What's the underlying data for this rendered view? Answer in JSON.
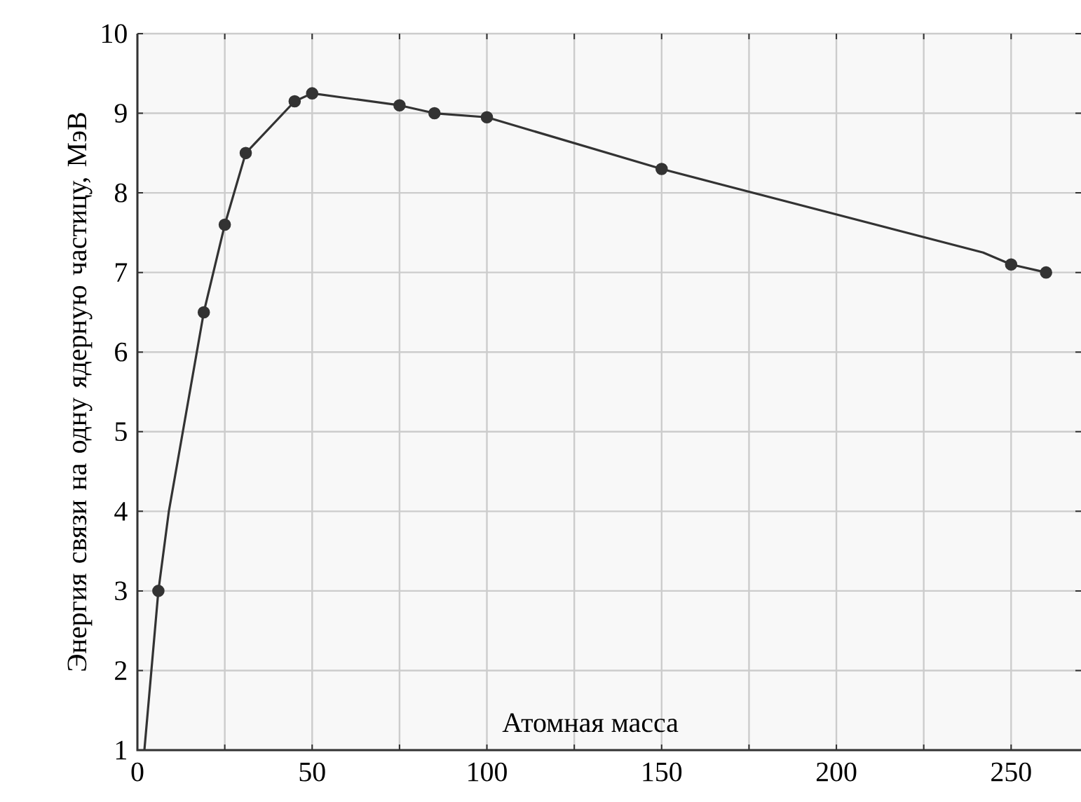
{
  "chart_data": {
    "type": "line",
    "xlabel": "Атомная масса",
    "ylabel": "Энергия связи на одну ядерную частицу, МэВ",
    "xlim": [
      0,
      270
    ],
    "ylim": [
      1,
      10
    ],
    "xticks": [
      0,
      {
        "value": 25,
        "label": null
      },
      50,
      {
        "value": 75,
        "label": null
      },
      100,
      {
        "value": 125,
        "label": null
      },
      150,
      {
        "value": 175,
        "label": null
      },
      200,
      {
        "value": 225,
        "label": null
      },
      250
    ],
    "yticks": [
      1,
      2,
      3,
      4,
      5,
      6,
      7,
      8,
      9,
      10
    ],
    "grid": true,
    "series": [
      {
        "type": "line",
        "color": "#333333",
        "marker": "none",
        "x": [
          2,
          6,
          9,
          13,
          19,
          25,
          31,
          45,
          50,
          75,
          85,
          100,
          150,
          242,
          250,
          260
        ],
        "values": [
          1,
          3,
          4,
          5,
          6.5,
          7.6,
          8.5,
          9.15,
          9.25,
          9.1,
          9.0,
          8.95,
          8.3,
          7.25,
          7.1,
          7.0
        ]
      },
      {
        "type": "scatter",
        "color": "#333333",
        "marker": "circle",
        "x": [
          6,
          19,
          25,
          31,
          45,
          50,
          75,
          85,
          100,
          150,
          250,
          260
        ],
        "values": [
          3,
          6.5,
          7.6,
          8.5,
          9.15,
          9.25,
          9.1,
          9.0,
          8.95,
          8.3,
          7.1,
          7.0
        ]
      }
    ]
  }
}
